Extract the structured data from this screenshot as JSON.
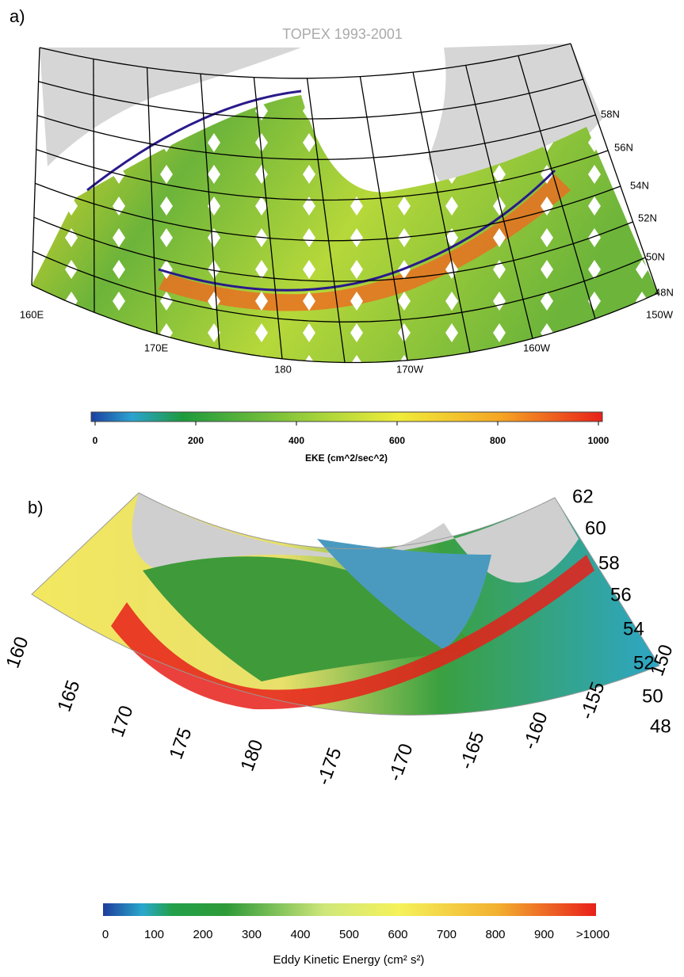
{
  "panel_a": {
    "label": "a)",
    "title": "TOPEX 1993-2001",
    "lat_labels": [
      "58N",
      "56N",
      "54N",
      "52N",
      "50N",
      "48N"
    ],
    "lon_labels": [
      "160E",
      "170E",
      "180",
      "170W",
      "160W",
      "150W"
    ],
    "colorbar": {
      "ticks": [
        0,
        200,
        400,
        600,
        800,
        1000
      ],
      "label": "EKE (cm^2/sec^2)"
    }
  },
  "panel_b": {
    "label": "b)",
    "lat_labels": [
      62,
      60,
      58,
      56,
      54,
      52,
      50,
      48
    ],
    "lon_labels": [
      160,
      165,
      170,
      175,
      180,
      -175,
      -170,
      -165,
      -160,
      -155,
      150
    ],
    "colorbar": {
      "ticks": [
        0,
        100,
        200,
        300,
        400,
        500,
        600,
        700,
        800,
        900,
        {
          "value": 1000,
          "label": ">1000"
        }
      ],
      "label": "Eddy Kinetic Energy (cm² s²)"
    }
  }
}
